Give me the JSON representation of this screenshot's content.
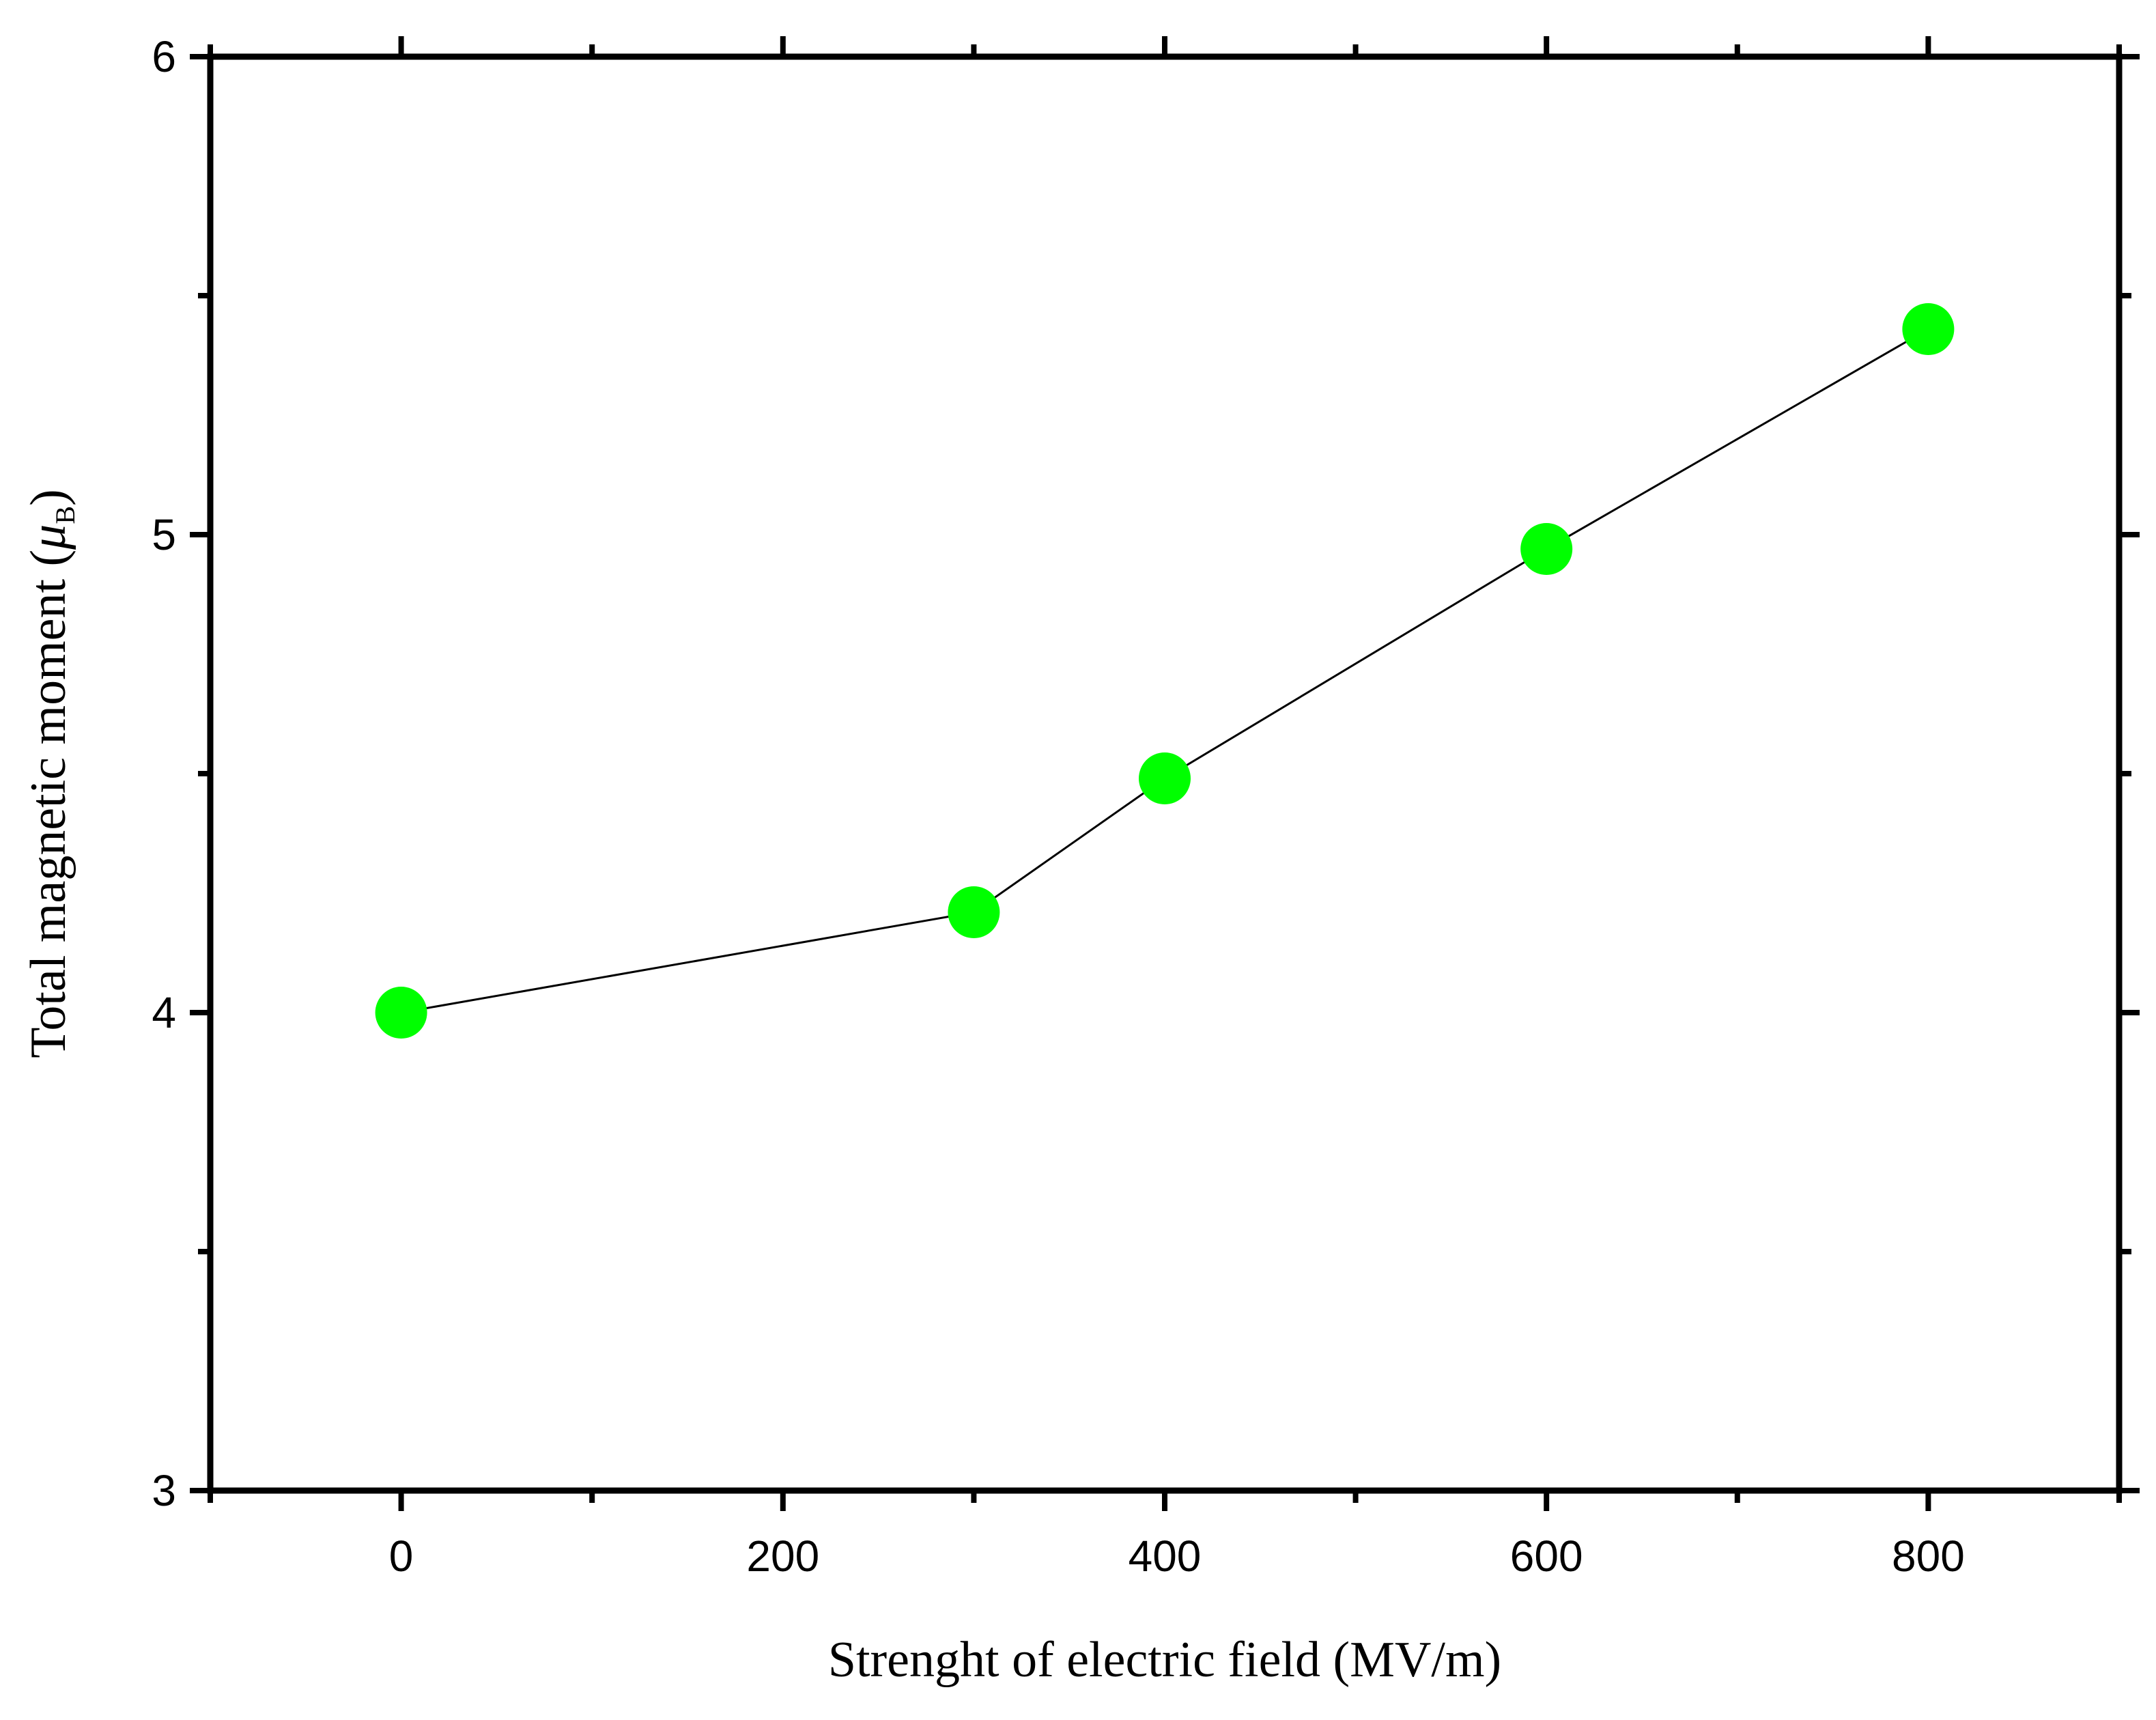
{
  "chart_data": {
    "type": "line",
    "title": "",
    "xlabel": "Strenght of electric field (MV/m)",
    "ylabel": {
      "before": "Total magnetic moment (",
      "symbol": "μ",
      "subscript": "B",
      "after": ")"
    },
    "xlim": [
      -100,
      900
    ],
    "ylim": [
      3,
      6
    ],
    "x_ticks": [
      0,
      200,
      400,
      600,
      800
    ],
    "x_minor_ticks": [
      -100,
      100,
      300,
      500,
      700,
      900
    ],
    "y_ticks": [
      3,
      4,
      5,
      6
    ],
    "y_minor_ticks": [
      3.5,
      4.5,
      5.5
    ],
    "grid": false,
    "series": [
      {
        "x": [
          0,
          300,
          400,
          600,
          800
        ],
        "y": [
          4.0,
          4.21,
          4.49,
          4.97,
          5.43
        ],
        "marker_color": "#00ff00",
        "line_color": "#000000"
      }
    ]
  }
}
